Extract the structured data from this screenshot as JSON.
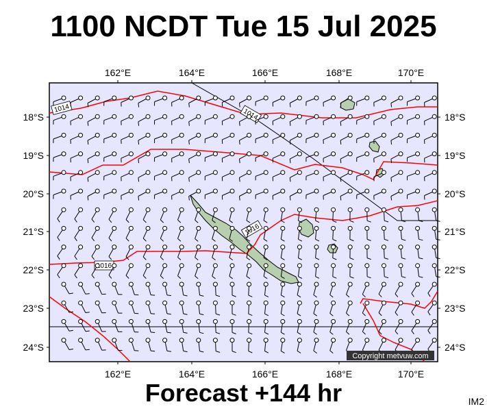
{
  "header": {
    "title": "1100 NCDT Tue 15 Jul 2025"
  },
  "footer": {
    "forecast": "Forecast +144 hr",
    "code": "IM2"
  },
  "map": {
    "credit": "Copyright metvuw.com",
    "lon_ticks": [
      "162°E",
      "164°E",
      "166°E",
      "168°E",
      "170°E"
    ],
    "lat_ticks": [
      "18°S",
      "19°S",
      "20°S",
      "21°S",
      "22°S",
      "23°S",
      "24°S"
    ],
    "isobar_labels": [
      "1014",
      "1014",
      "1016",
      "1016"
    ],
    "colors": {
      "ocean": "#e6e6ff",
      "land": "#b7cfae",
      "isobar": "#ff0000",
      "wind": "#000000"
    },
    "lon_range": [
      160,
      170.8
    ],
    "lat_range": [
      -24.4,
      -17.6
    ]
  }
}
